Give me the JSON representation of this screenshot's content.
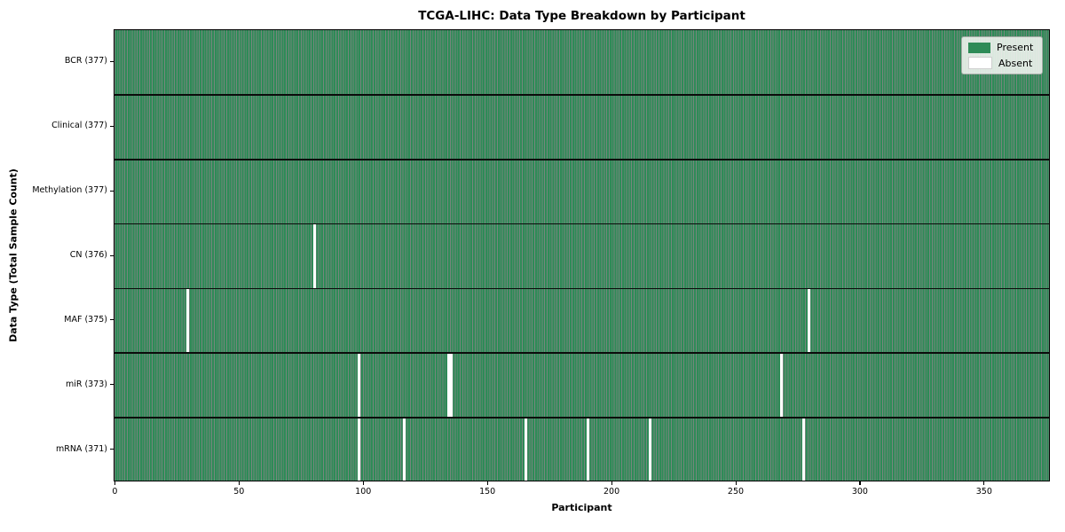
{
  "chart_data": {
    "type": "heatmap",
    "title": "TCGA-LIHC: Data Type Breakdown by Participant",
    "xlabel": "Participant",
    "ylabel": "Data Type (Total Sample Count)",
    "n_participants": 377,
    "xlim": [
      -0.5,
      376.5
    ],
    "x_ticks": [
      0,
      50,
      100,
      150,
      200,
      250,
      300,
      350
    ],
    "grid": "row dividers between data types, dark per-participant cell edges",
    "legend_position": "upper right",
    "legend_entries": [
      {
        "label": "Present",
        "color": "#2e8b57"
      },
      {
        "label": "Absent",
        "color": "#ffffff"
      }
    ],
    "colors": {
      "present_fill": "#2e8b57",
      "cell_edge": "rgba(5,35,20,0.55)",
      "absent_fill": "#ffffff",
      "row_divider": "#0b0b0b",
      "axes_frame": "#000000"
    },
    "rows": [
      {
        "data_type": "BCR",
        "label": "BCR (377)",
        "present_count": 377,
        "absent_count": 0,
        "absent_participants": []
      },
      {
        "data_type": "Clinical",
        "label": "Clinical (377)",
        "present_count": 377,
        "absent_count": 0,
        "absent_participants": []
      },
      {
        "data_type": "Methylation",
        "label": "Methylation (377)",
        "present_count": 377,
        "absent_count": 0,
        "absent_participants": []
      },
      {
        "data_type": "CN",
        "label": "CN (376)",
        "present_count": 376,
        "absent_count": 1,
        "absent_participants": [
          80
        ]
      },
      {
        "data_type": "MAF",
        "label": "MAF (375)",
        "present_count": 375,
        "absent_count": 2,
        "absent_participants": [
          29,
          279
        ]
      },
      {
        "data_type": "miR",
        "label": "miR (373)",
        "present_count": 373,
        "absent_count": 4,
        "absent_participants": [
          98,
          134,
          135,
          268
        ]
      },
      {
        "data_type": "mRNA",
        "label": "mRNA (371)",
        "present_count": 371,
        "absent_count": 6,
        "absent_participants": [
          98,
          116,
          165,
          190,
          215,
          277
        ]
      }
    ]
  }
}
